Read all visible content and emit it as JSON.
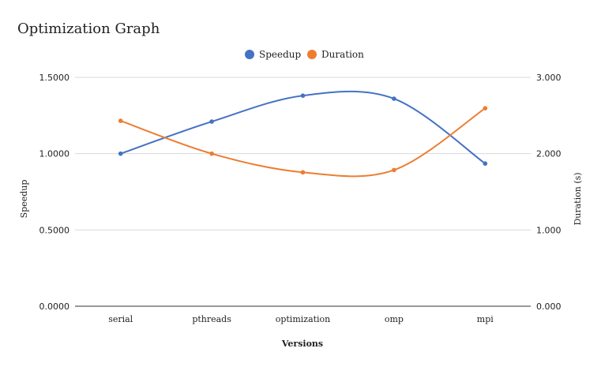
{
  "chart_data": {
    "type": "line",
    "title": "Optimization Graph",
    "xlabel": "Versions",
    "ylabel_left": "Speedup",
    "ylabel_right": "Duration (s)",
    "categories": [
      "serial",
      "pthreads",
      "optimization",
      "omp",
      "mpi"
    ],
    "y_left": {
      "lim": [
        0,
        1.5
      ],
      "ticks": [
        "0.0000",
        "0.5000",
        "1.0000",
        "1.5000"
      ]
    },
    "y_right": {
      "lim": [
        0,
        3
      ],
      "ticks": [
        "0.000",
        "1.000",
        "2.000",
        "3.000"
      ]
    },
    "grid": true,
    "legend_position": "top-center",
    "series": [
      {
        "name": "Speedup",
        "axis": "left",
        "color": "#4472c4",
        "values": [
          1.0,
          1.21,
          1.38,
          1.36,
          0.935
        ]
      },
      {
        "name": "Duration",
        "axis": "right",
        "color": "#ed7d31",
        "values": [
          2.43,
          2.0,
          1.755,
          1.785,
          2.595
        ]
      }
    ]
  }
}
